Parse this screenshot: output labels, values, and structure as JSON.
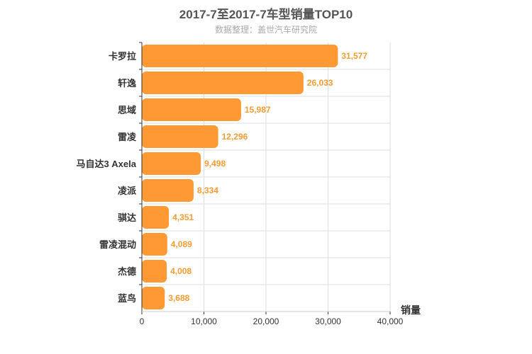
{
  "chart_data": {
    "type": "bar",
    "orientation": "horizontal",
    "title": "2017-7至2017-7车型销量TOP10",
    "subtitle": "数据整理：盖世汽车研究院",
    "xlabel": "销量",
    "ylabel": "",
    "categories": [
      "卡罗拉",
      "轩逸",
      "思域",
      "雷凌",
      "马自达3 Axela",
      "凌派",
      "骐达",
      "雷凌混动",
      "杰德",
      "蓝鸟"
    ],
    "values": [
      31577,
      26033,
      15987,
      12296,
      9498,
      8334,
      4351,
      4089,
      4008,
      3688
    ],
    "value_labels": [
      "31,577",
      "26,033",
      "15,987",
      "12,296",
      "9,498",
      "8,334",
      "4,351",
      "4,089",
      "4,008",
      "3,688"
    ],
    "xlim": [
      0,
      40000
    ],
    "xticks": [
      0,
      10000,
      20000,
      30000,
      40000
    ],
    "xtick_labels": [
      "0",
      "10,000",
      "20,000",
      "30,000",
      "40,000"
    ],
    "grid": true,
    "legend": "none",
    "bar_color": "#ff9933",
    "label_color": "#f39c34"
  }
}
